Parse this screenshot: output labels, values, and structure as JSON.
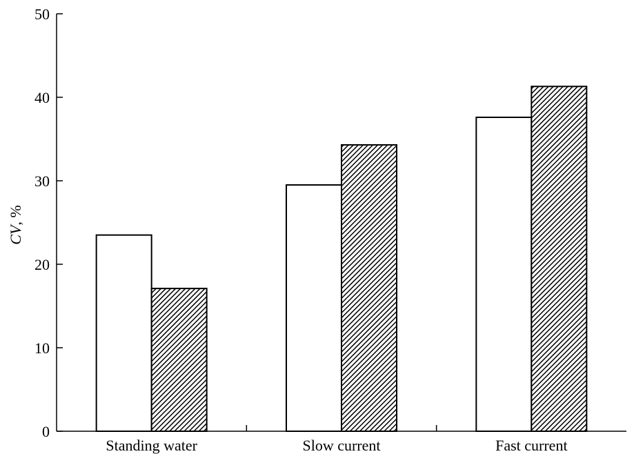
{
  "chart_data": {
    "type": "bar",
    "title": "",
    "xlabel": "",
    "ylabel": "CV, %",
    "ylabel_parts": {
      "italic": "CV",
      "rest": ", %"
    },
    "categories": [
      "Standing water",
      "Slow current",
      "Fast current"
    ],
    "series": [
      {
        "fill": "#ffffff",
        "pattern": "none",
        "values": [
          23.5,
          29.5,
          37.6
        ]
      },
      {
        "fill": "#000000",
        "pattern": "diagonal-hatch",
        "values": [
          17.1,
          34.3,
          41.3
        ]
      }
    ],
    "ylim": [
      0,
      50
    ],
    "yticks": [
      0,
      10,
      20,
      30,
      40,
      50
    ],
    "grid": false,
    "legend": "none"
  }
}
